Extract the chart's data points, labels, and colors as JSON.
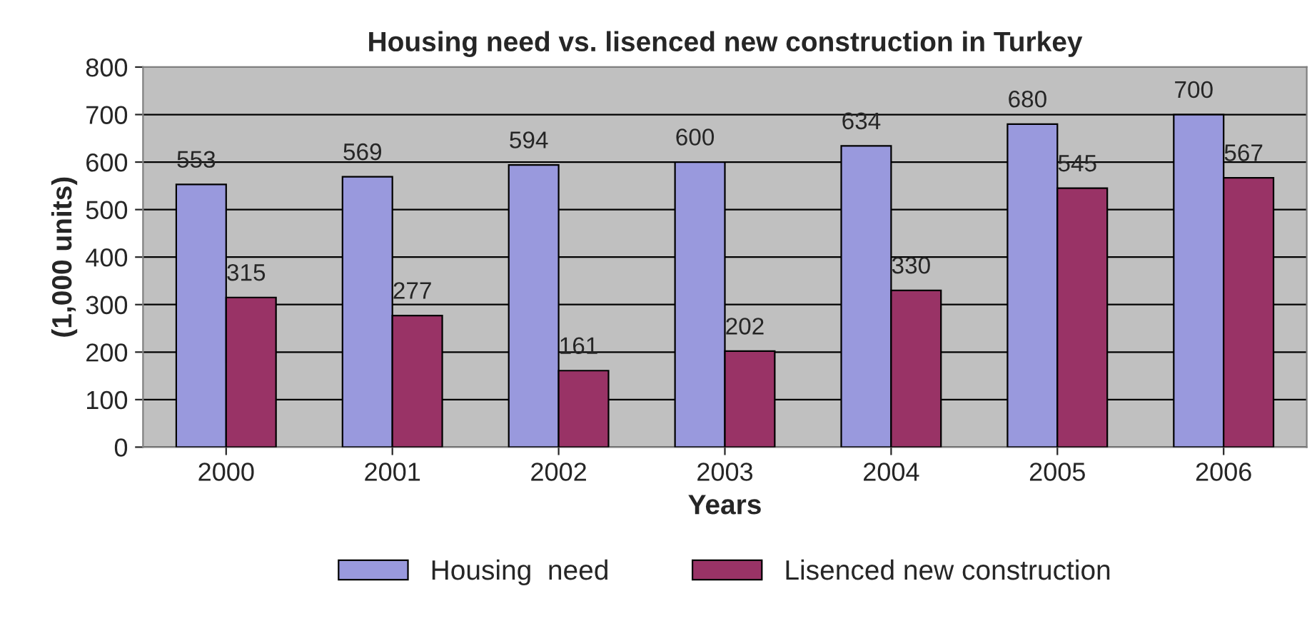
{
  "chart_data": {
    "type": "bar",
    "title": "Housing need vs. lisenced new construction in Turkey",
    "xlabel": "Years",
    "ylabel": "(1,000 units)",
    "categories": [
      "2000",
      "2001",
      "2002",
      "2003",
      "2004",
      "2005",
      "2006"
    ],
    "series": [
      {
        "name": "Housing  need",
        "color": "#9999dd",
        "values": [
          553,
          569,
          594,
          600,
          634,
          680,
          700
        ]
      },
      {
        "name": "Lisenced new construction",
        "color": "#993366",
        "values": [
          315,
          277,
          161,
          202,
          330,
          545,
          567
        ]
      }
    ],
    "ylim": [
      0,
      800
    ],
    "yticks": [
      0,
      100,
      200,
      300,
      400,
      500,
      600,
      700,
      800
    ],
    "grid": "y",
    "legend": "bottom",
    "data_labels": true
  }
}
